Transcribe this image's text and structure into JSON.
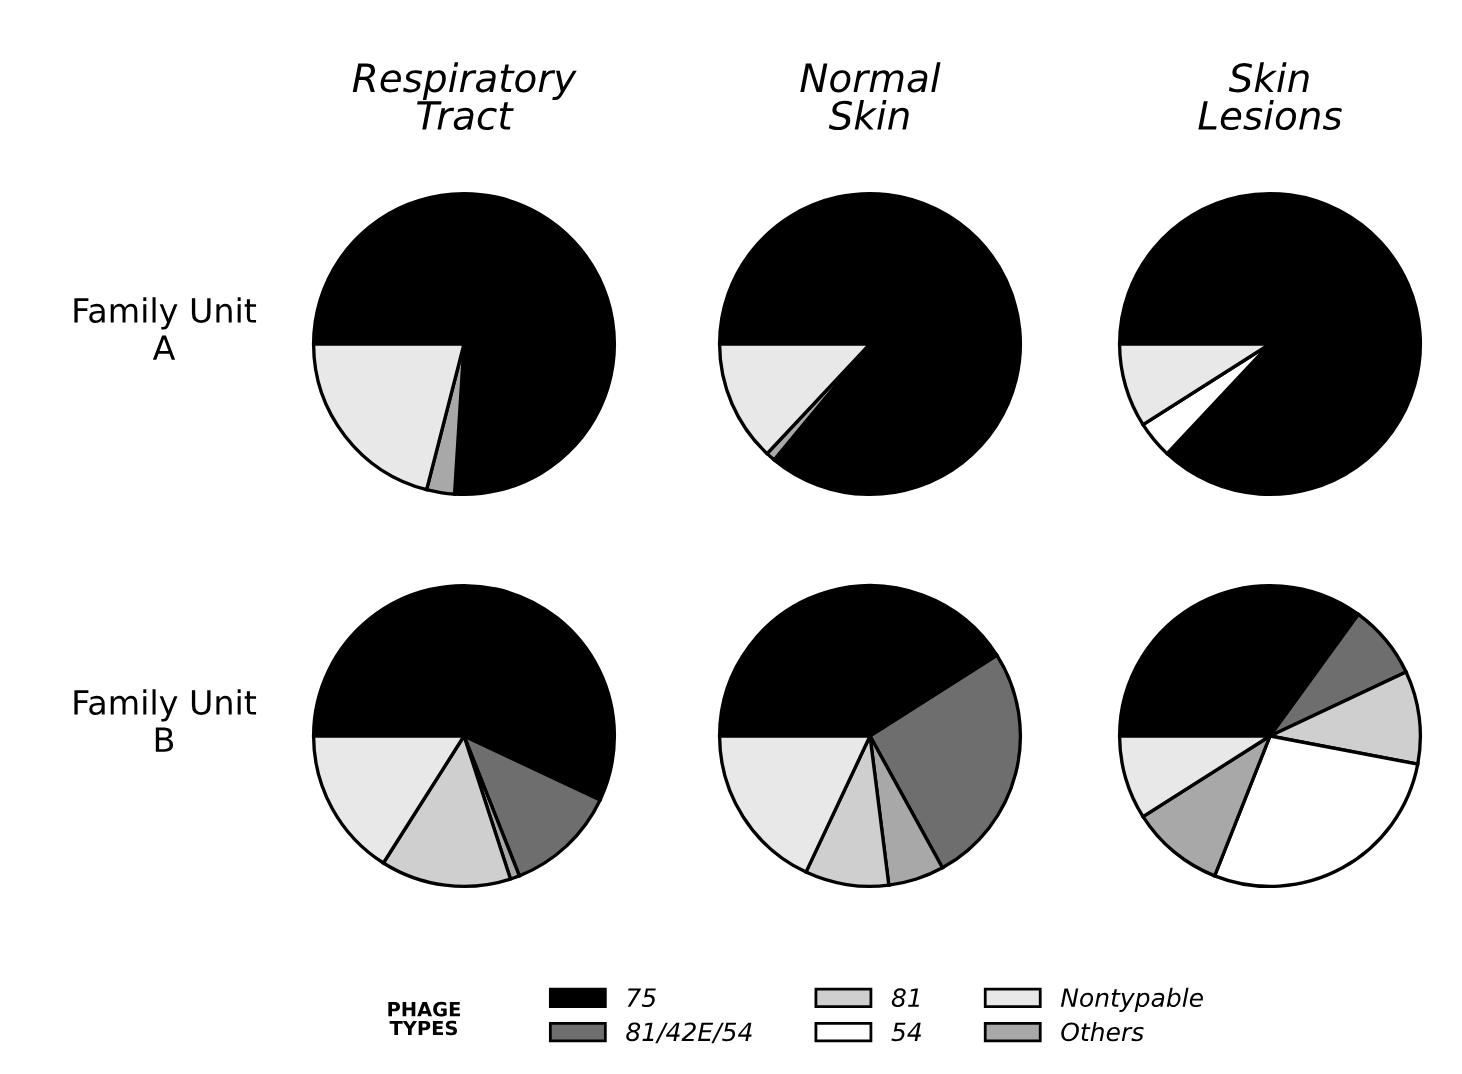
{
  "chart_data": [
    {
      "type": "pie",
      "title": "Respiratory Tract",
      "ylabel": "Family Unit A",
      "categories": [
        null,
        null,
        null
      ],
      "values": [
        76,
        3,
        21
      ],
      "colors": [
        "#000000",
        "#a8a8a8",
        "#e8e8e8"
      ]
    },
    {
      "type": "pie",
      "title": "Normal Skin",
      "categories": [
        null,
        null,
        null
      ],
      "values": [
        86,
        1,
        13
      ],
      "colors": [
        "#000000",
        "#a8a8a8",
        "#e8e8e8"
      ]
    },
    {
      "type": "pie",
      "title": "Skin Lesions",
      "categories": [
        null,
        null,
        null
      ],
      "values": [
        87,
        4,
        9
      ],
      "colors": [
        "#000000",
        "#ffffff",
        "#e8e8e8"
      ]
    },
    {
      "type": "pie",
      "ylabel": "Family Unit B",
      "categories": [
        null,
        null,
        null,
        null,
        null
      ],
      "values": [
        57,
        12,
        1,
        14,
        16
      ],
      "colors": [
        "#000000",
        "#6e6e6e",
        "#a8a8a8",
        "#cfcfcf",
        "#e8e8e8"
      ]
    },
    {
      "type": "pie",
      "categories": [
        null,
        null,
        null,
        null,
        null
      ],
      "values": [
        41,
        26,
        6,
        9,
        18
      ],
      "colors": [
        "#000000",
        "#6e6e6e",
        "#a8a8a8",
        "#cfcfcf",
        "#e8e8e8"
      ]
    },
    {
      "type": "pie",
      "categories": [
        "75",
        "81/42E/54",
        "81",
        "54",
        "Others",
        "Nontypable"
      ],
      "values": [
        35,
        8,
        10,
        28,
        10,
        9
      ],
      "colors": [
        "#000000",
        "#6e6e6e",
        "#cfcfcf",
        "#ffffff",
        "#a8a8a8",
        "#e8e8e8"
      ],
      "legend": "bottom",
      "legend_title": "PHAGE TYPES"
    }
  ]
}
